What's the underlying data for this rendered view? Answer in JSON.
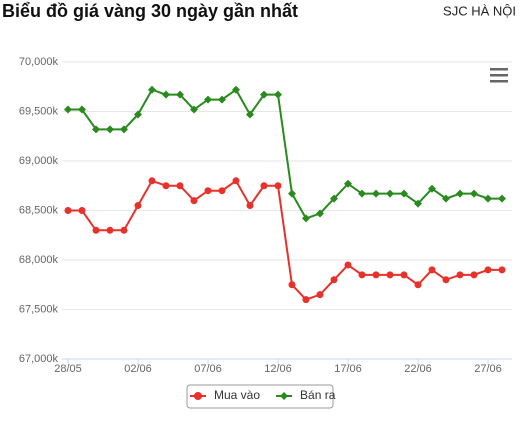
{
  "chart_data": {
    "type": "line",
    "title": "Biểu đồ giá vàng 30 ngày gần nhất",
    "subtitle": "SJC HÀ NỘI",
    "categories": [
      "28/05",
      null,
      null,
      null,
      null,
      "02/06",
      null,
      null,
      null,
      null,
      "07/06",
      null,
      null,
      null,
      null,
      "12/06",
      null,
      null,
      null,
      null,
      "17/06",
      null,
      null,
      null,
      null,
      "22/06",
      null,
      null,
      null,
      null,
      "27/06",
      null
    ],
    "series": [
      {
        "name": "Mua vào",
        "color": "#e8312a",
        "values": [
          68500,
          68500,
          68300,
          68300,
          68300,
          68550,
          68800,
          68750,
          68750,
          68600,
          68700,
          68700,
          68800,
          68550,
          68750,
          68750,
          67750,
          67600,
          67650,
          67800,
          67950,
          67850,
          67850,
          67850,
          67850,
          67750,
          67900,
          67800,
          67850,
          67850,
          67900,
          67900
        ]
      },
      {
        "name": "Bán ra",
        "color": "#2a8a1e",
        "values": [
          69520,
          69520,
          69320,
          69320,
          69320,
          69470,
          69720,
          69670,
          69670,
          69520,
          69620,
          69620,
          69720,
          69470,
          69670,
          69670,
          68670,
          68420,
          68470,
          68620,
          68770,
          68670,
          68670,
          68670,
          68670,
          68570,
          68720,
          68620,
          68670,
          68670,
          68620,
          68620
        ]
      }
    ],
    "ylim": [
      67000,
      70000
    ],
    "yticks": [
      {
        "value": 67000,
        "label": "67,000k"
      },
      {
        "value": 67500,
        "label": "67,500k"
      },
      {
        "value": 68000,
        "label": "68,000k"
      },
      {
        "value": 68500,
        "label": "68,500k"
      },
      {
        "value": 69000,
        "label": "69,000k"
      },
      {
        "value": 69500,
        "label": "69,500k"
      },
      {
        "value": 70000,
        "label": "70,000k"
      }
    ],
    "grid": true
  }
}
